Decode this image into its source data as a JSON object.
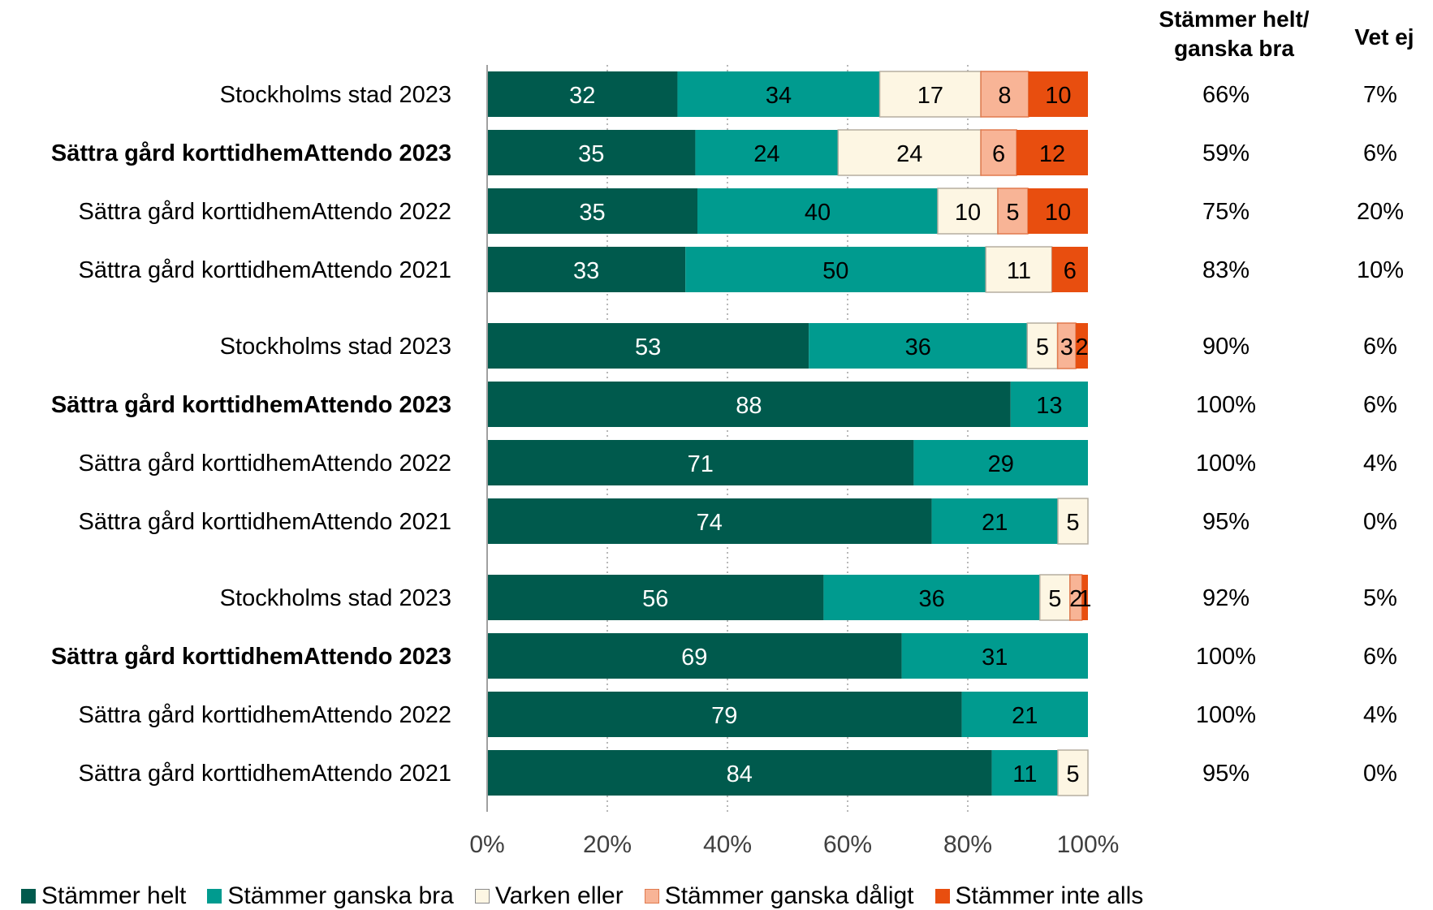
{
  "headers": {
    "agree": "Stämmer helt/ ganska bra",
    "dontknow": "Vet ej"
  },
  "colors": {
    "helt": "#005a4d",
    "ganska_bra": "#009b8f",
    "varken": "#fdf6e3",
    "ganska_daligt": "#f8b496",
    "inte_alls": "#e84e0f"
  },
  "chart_data": {
    "type": "bar",
    "orientation": "horizontal",
    "stacked": true,
    "xlim": [
      0,
      100
    ],
    "xticks": [
      "0%",
      "20%",
      "40%",
      "60%",
      "80%",
      "100%"
    ],
    "grid": "vertical dotted",
    "legend_position": "bottom",
    "series": [
      {
        "name": "Stämmer helt",
        "key": "helt"
      },
      {
        "name": "Stämmer ganska bra",
        "key": "ganska_bra"
      },
      {
        "name": "Varken eller",
        "key": "varken"
      },
      {
        "name": "Stämmer ganska dåligt",
        "key": "ganska_daligt"
      },
      {
        "name": "Stämmer inte alls",
        "key": "inte_alls"
      }
    ],
    "groups": [
      {
        "rows": [
          {
            "label": "Stockholms stad 2023",
            "bold": false,
            "values": [
              32,
              34,
              17,
              8,
              10
            ],
            "agree": "66%",
            "dontknow": "7%"
          },
          {
            "label": "Sättra gård korttidhemAttendo 2023",
            "bold": true,
            "values": [
              35,
              24,
              24,
              6,
              12
            ],
            "agree": "59%",
            "dontknow": "6%"
          },
          {
            "label": "Sättra gård korttidhemAttendo 2022",
            "bold": false,
            "values": [
              35,
              40,
              10,
              5,
              10
            ],
            "agree": "75%",
            "dontknow": "20%"
          },
          {
            "label": "Sättra gård korttidhemAttendo 2021",
            "bold": false,
            "values": [
              33,
              50,
              11,
              0,
              6
            ],
            "agree": "83%",
            "dontknow": "10%"
          }
        ]
      },
      {
        "rows": [
          {
            "label": "Stockholms stad 2023",
            "bold": false,
            "values": [
              53,
              36,
              5,
              3,
              2
            ],
            "agree": "90%",
            "dontknow": "6%"
          },
          {
            "label": "Sättra gård korttidhemAttendo 2023",
            "bold": true,
            "values": [
              88,
              13,
              0,
              0,
              0
            ],
            "agree": "100%",
            "dontknow": "6%"
          },
          {
            "label": "Sättra gård korttidhemAttendo 2022",
            "bold": false,
            "values": [
              71,
              29,
              0,
              0,
              0
            ],
            "agree": "100%",
            "dontknow": "4%"
          },
          {
            "label": "Sättra gård korttidhemAttendo 2021",
            "bold": false,
            "values": [
              74,
              21,
              5,
              0,
              0
            ],
            "agree": "95%",
            "dontknow": "0%"
          }
        ]
      },
      {
        "rows": [
          {
            "label": "Stockholms stad 2023",
            "bold": false,
            "values": [
              56,
              36,
              5,
              2,
              1
            ],
            "agree": "92%",
            "dontknow": "5%"
          },
          {
            "label": "Sättra gård korttidhemAttendo 2023",
            "bold": true,
            "values": [
              69,
              31,
              0,
              0,
              0
            ],
            "agree": "100%",
            "dontknow": "6%"
          },
          {
            "label": "Sättra gård korttidhemAttendo 2022",
            "bold": false,
            "values": [
              79,
              21,
              0,
              0,
              0
            ],
            "agree": "100%",
            "dontknow": "4%"
          },
          {
            "label": "Sättra gård korttidhemAttendo 2021",
            "bold": false,
            "values": [
              84,
              11,
              5,
              0,
              0
            ],
            "agree": "95%",
            "dontknow": "0%"
          }
        ]
      }
    ]
  }
}
